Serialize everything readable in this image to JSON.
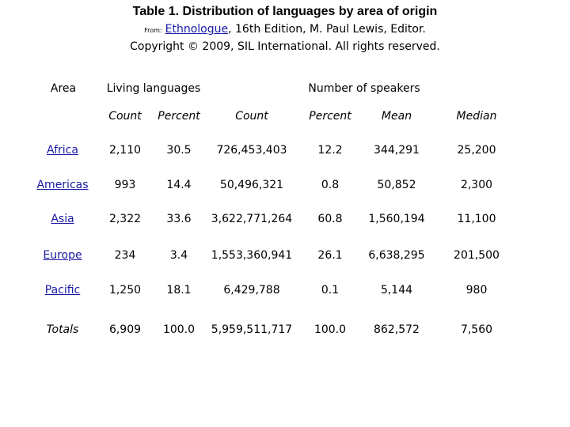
{
  "title": "Table 1. Distribution of languages by area of origin",
  "source": {
    "from_label": "From:",
    "link_text": "Ethnologue",
    "rest_line1": ", 16th Edition, M. Paul Lewis, Editor.",
    "line2": "Copyright © 2009, SIL International. All rights reserved."
  },
  "headers": {
    "area": "Area",
    "living_languages": "Living languages",
    "number_of_speakers": "Number of speakers",
    "sub": [
      "Count",
      "Percent",
      "Count",
      "Percent",
      "Mean",
      "Median"
    ]
  },
  "rows": [
    {
      "area": "Africa",
      "values": [
        "2,110",
        "30.5",
        "726,453,403",
        "12.2",
        "344,291",
        "25,200"
      ]
    },
    {
      "area": "Americas",
      "values": [
        "993",
        "14.4",
        "50,496,321",
        "0.8",
        "50,852",
        "2,300"
      ]
    },
    {
      "area": "Asia",
      "values": [
        "2,322",
        "33.6",
        "3,622,771,264",
        "60.8",
        "1,560,194",
        "11,100"
      ]
    },
    {
      "area": "Europe",
      "values": [
        "234",
        "3.4",
        "1,553,360,941",
        "26.1",
        "6,638,295",
        "201,500"
      ]
    },
    {
      "area": "Pacific",
      "values": [
        "1,250",
        "18.1",
        "6,429,788",
        "0.1",
        "5,144",
        "980"
      ]
    },
    {
      "area": "Totals",
      "values": [
        "6,909",
        "100.0",
        "5,959,511,717",
        "100.0",
        "862,572",
        "7,560"
      ]
    }
  ]
}
